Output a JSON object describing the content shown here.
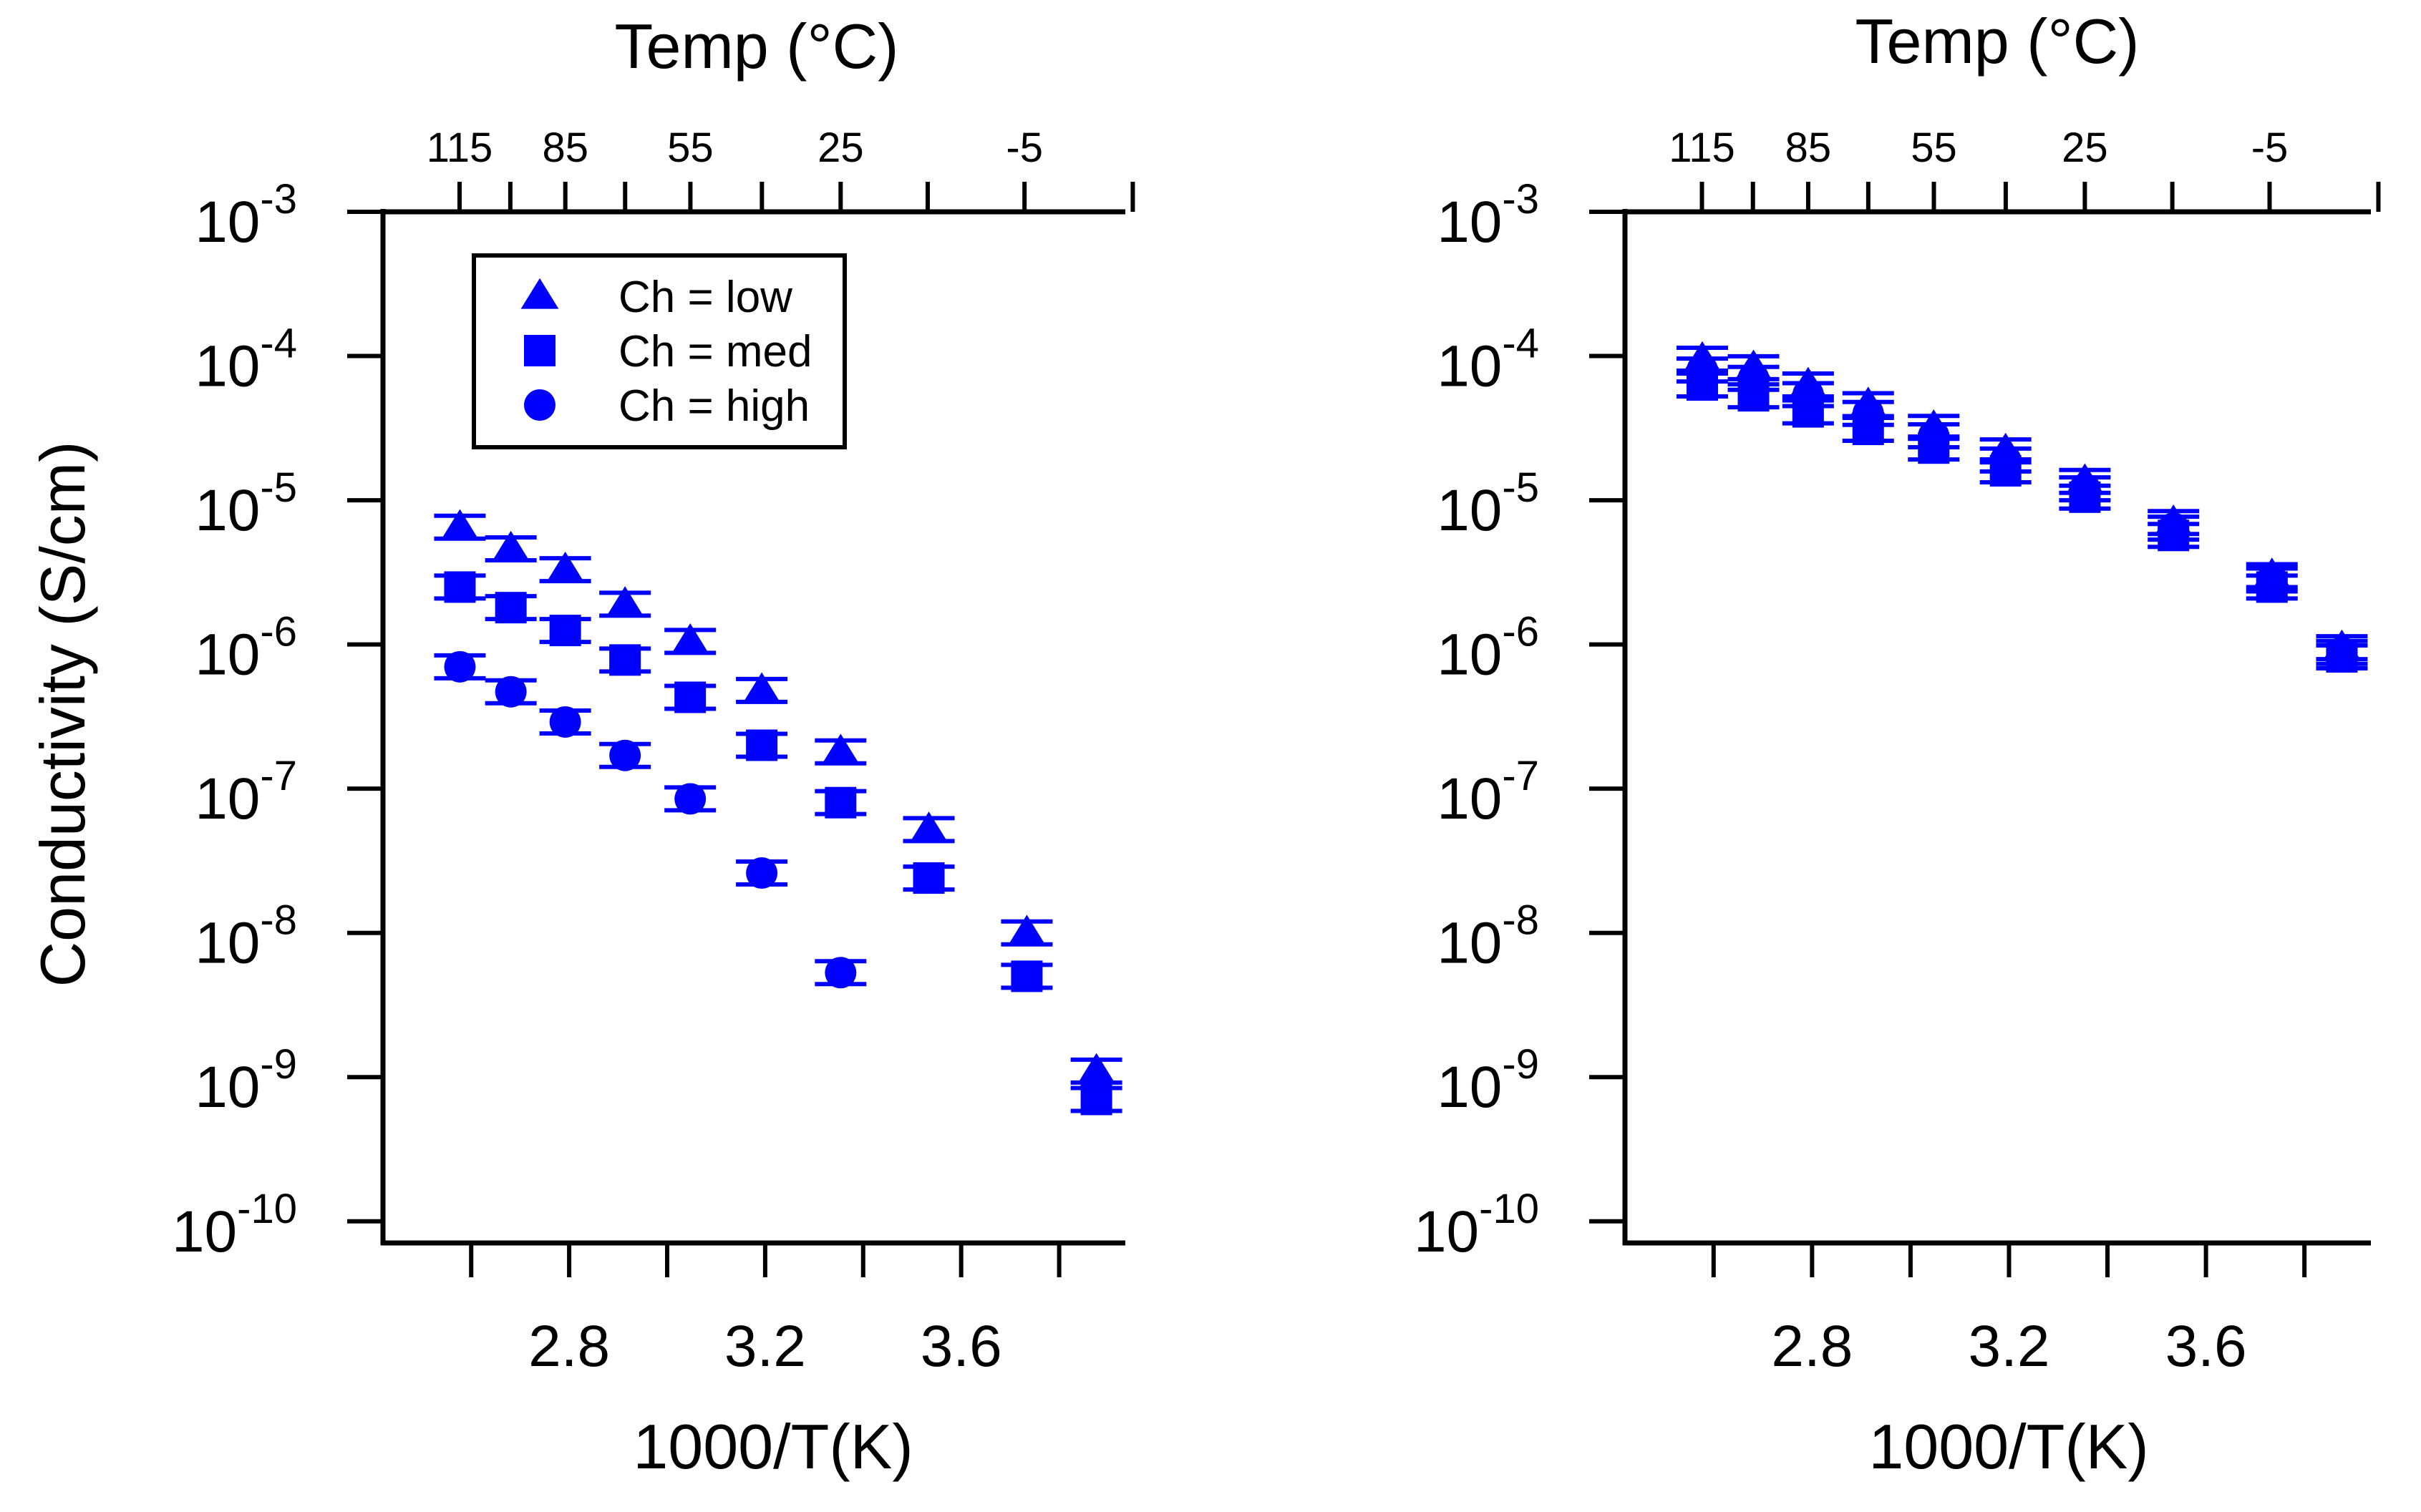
{
  "figure": {
    "ylabel": "Conductivity (S/cm)",
    "colors": {
      "marker": "#0000ff",
      "axis": "#000000"
    }
  },
  "chart_data": [
    {
      "type": "scatter",
      "panel": "left",
      "title": "",
      "xlabel": "1000/T(K)",
      "top_xlabel": "Temp (°C)",
      "xlim": [
        2.42,
        3.935
      ],
      "ylim_log10": [
        -10.15,
        -3
      ],
      "x_tick_values": [
        2.8,
        3.2,
        3.6
      ],
      "x_tick_labels": [
        "2.8",
        "3.2",
        "3.6"
      ],
      "x_minor_ticks": [
        2.6,
        3.0,
        3.4,
        3.8
      ],
      "top_tick_labels": [
        "115",
        "85",
        "55",
        "25",
        "-5"
      ],
      "top_tick_values": [
        115,
        85,
        55,
        25,
        -5
      ],
      "top_minor_ticks": [
        100,
        70,
        40,
        10,
        -20
      ],
      "y_tick_exponents": [
        -3,
        -4,
        -5,
        -6,
        -7,
        -8,
        -9,
        -10
      ],
      "y_tick_base": "10",
      "legend": {
        "position": "top-left",
        "entries": [
          {
            "marker": "triangle",
            "label": "Ch = low"
          },
          {
            "marker": "square",
            "label": "Ch = med"
          },
          {
            "marker": "circle",
            "label": "Ch = high"
          }
        ]
      },
      "series": [
        {
          "name": "Ch = low",
          "marker": "triangle",
          "x": [
            2.577,
            2.681,
            2.792,
            2.914,
            3.047,
            3.193,
            3.354,
            3.534,
            3.734,
            3.876
          ],
          "y": [
            6.5e-06,
            4.6e-06,
            3.3e-06,
            1.9e-06,
            1.05e-06,
            4.8e-07,
            1.8e-07,
            5.2e-08,
            1e-08,
            1.1e-09
          ]
        },
        {
          "name": "Ch = med",
          "marker": "square",
          "x": [
            2.577,
            2.681,
            2.792,
            2.914,
            3.047,
            3.193,
            3.354,
            3.534,
            3.734,
            3.876
          ],
          "y": [
            2.5e-06,
            1.8e-06,
            1.25e-06,
            7.8e-07,
            4.3e-07,
            2e-07,
            8e-08,
            2.4e-08,
            5e-09,
            7e-10
          ]
        },
        {
          "name": "Ch = high",
          "marker": "circle",
          "x": [
            2.577,
            2.681,
            2.792,
            2.914,
            3.047,
            3.193,
            3.354
          ],
          "y": [
            7e-07,
            4.7e-07,
            2.9e-07,
            1.7e-07,
            8.5e-08,
            2.6e-08,
            5.3e-09
          ]
        }
      ]
    },
    {
      "type": "scatter",
      "panel": "right",
      "title": "",
      "xlabel": "1000/T(K)",
      "top_xlabel": "Temp (°C)",
      "xlim": [
        2.42,
        3.935
      ],
      "ylim_log10": [
        -10.15,
        -3
      ],
      "x_tick_values": [
        2.8,
        3.2,
        3.6
      ],
      "x_tick_labels": [
        "2.8",
        "3.2",
        "3.6"
      ],
      "x_minor_ticks": [
        2.6,
        3.0,
        3.4,
        3.8
      ],
      "top_tick_labels": [
        "115",
        "85",
        "55",
        "25",
        "-5"
      ],
      "top_tick_values": [
        115,
        85,
        55,
        25,
        -5
      ],
      "top_minor_ticks": [
        100,
        70,
        40,
        10,
        -20
      ],
      "y_tick_exponents": [
        -3,
        -4,
        -5,
        -6,
        -7,
        -8,
        -9,
        -10
      ],
      "y_tick_base": "10",
      "series": [
        {
          "name": "Ch = low",
          "marker": "triangle",
          "x": [
            2.577,
            2.681,
            2.792,
            2.914,
            3.047,
            3.193,
            3.354,
            3.534,
            3.734,
            3.876
          ],
          "y": [
            9.5e-05,
            8.3e-05,
            6.3e-05,
            4.6e-05,
            3.2e-05,
            2.2e-05,
            1.35e-05,
            7e-06,
            3e-06,
            9.5e-07
          ]
        },
        {
          "name": "Ch = med",
          "marker": "square",
          "x": [
            2.577,
            2.681,
            2.792,
            2.914,
            3.047,
            3.193,
            3.354,
            3.534,
            3.734,
            3.876
          ],
          "y": [
            6.3e-05,
            5.3e-05,
            4.1e-05,
            3.1e-05,
            2.3e-05,
            1.6e-05,
            1.05e-05,
            5.7e-06,
            2.5e-06,
            8.2e-07
          ]
        },
        {
          "name": "Ch = high",
          "marker": "circle",
          "x": [
            2.577,
            2.681,
            2.792,
            2.914,
            3.047,
            3.193,
            3.354,
            3.534,
            3.734,
            3.876
          ],
          "y": [
            8e-05,
            7e-05,
            5.4e-05,
            4e-05,
            2.8e-05,
            1.9e-05,
            1.2e-05,
            6.4e-06,
            2.8e-06,
            8.8e-07
          ]
        }
      ]
    }
  ]
}
